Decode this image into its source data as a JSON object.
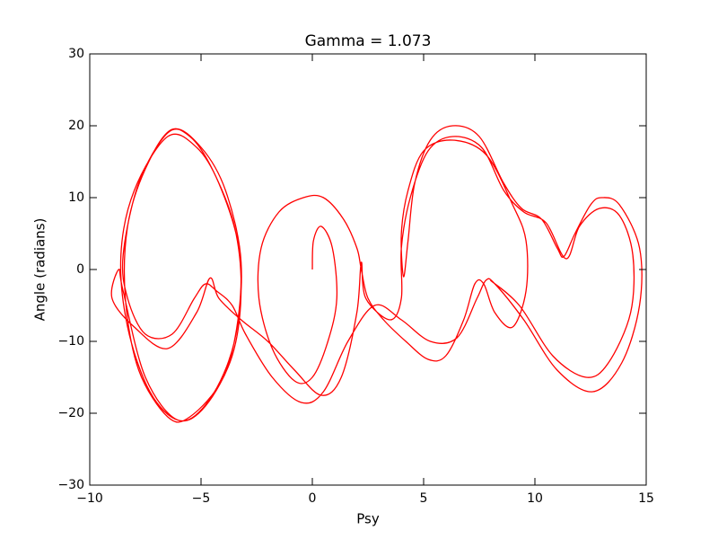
{
  "chart_data": {
    "type": "line",
    "title": "Gamma = 1.073",
    "xlabel": "Psy",
    "ylabel": "Angle (radians)",
    "color": "#ff0000",
    "xlim": [
      -10,
      15
    ],
    "xticks": [
      {
        "value": -10,
        "label": "−10"
      },
      {
        "value": -5,
        "label": "−5"
      },
      0,
      5,
      10,
      15
    ],
    "ylim": [
      -30,
      30
    ],
    "yticks": [
      {
        "value": -30,
        "label": "−30"
      },
      {
        "value": -20,
        "label": "−20"
      },
      {
        "value": -10,
        "label": "−10"
      },
      0,
      10,
      20,
      30
    ],
    "x": [
      0,
      0.05,
      0.4,
      0.9,
      1.1,
      0.7,
      0,
      -0.8,
      -1.8,
      -2.4,
      -2.3,
      -1.5,
      -0.4,
      0.5,
      1.4,
      2,
      2.2,
      2.5,
      3.2,
      4.2,
      5.2,
      6,
      6.8,
      7.3,
      7.7,
      8.2,
      9,
      9.6,
      9.6,
      9,
      7.8,
      6.3,
      5,
      4.3,
      4,
      4.1,
      4.3,
      4.6,
      5.3,
      6.3,
      7.5,
      8.6,
      9.4,
      10.3,
      11,
      11.3,
      11.8,
      12.5,
      13,
      13.8,
      14.7,
      14.7,
      13.9,
      12.6,
      11,
      9.5,
      8.2,
      7.8,
      7.4,
      6.5,
      5.3,
      4,
      2.8,
      1.6,
      0.5,
      -0.5,
      -1.8,
      -3,
      -3.6,
      -4.3,
      -4.8,
      -5.3,
      -6.3,
      -7.5,
      -8.3,
      -8.5,
      -7.8,
      -6.5,
      -5.5,
      -4.5,
      -3.5,
      -3.2,
      -3.6,
      -4.8,
      -6,
      -7.3,
      -8.3,
      -8.6,
      -8,
      -6.5,
      -5.2,
      -4.2,
      -3.3,
      -3.3,
      -4,
      -5.5,
      -6.5,
      -7.8,
      -8.4,
      -8.3,
      -7.5,
      -6.3,
      -5,
      -3.9,
      -3.2,
      -3.5,
      -4.6,
      -6,
      -7.5,
      -8.5,
      -8.7,
      -9,
      -8,
      -6.5,
      -5.2,
      -4.6,
      -4.2,
      -3.2,
      -2,
      -0.8,
      0.4,
      1.3,
      2,
      2.2,
      2.4,
      3.5,
      4,
      4,
      4.4,
      5.2,
      6.3,
      7.6,
      8.6,
      9.5,
      10.5,
      11.4,
      12,
      12.9,
      13.8,
      14.4,
      14.3,
      13.3,
      12.3,
      10.8,
      9.3,
      8
    ],
    "values": [
      0,
      4,
      6,
      3,
      -4,
      -10,
      -15,
      -15.5,
      -11,
      -4,
      3,
      8,
      10,
      10,
      7,
      3,
      0,
      -4,
      -7,
      -10,
      -12.5,
      -12,
      -7,
      -2,
      -2,
      -6,
      -8,
      -3,
      4,
      9,
      16,
      18,
      16.5,
      11,
      5,
      -1,
      4,
      12,
      18,
      20,
      18.5,
      12,
      8.5,
      7,
      3,
      1.8,
      5,
      9,
      10,
      9,
      3,
      -5,
      -13,
      -17,
      -14,
      -7,
      -2,
      -1.5,
      -4,
      -9.5,
      -10,
      -7,
      -5,
      -10,
      -17,
      -18.5,
      -15,
      -9,
      -5,
      -3,
      -2,
      -4,
      -9,
      -9,
      -4,
      2,
      12,
      19,
      18.5,
      14,
      6,
      -3,
      -12,
      -19,
      -21,
      -17,
      -8,
      2,
      11,
      18.5,
      17,
      12,
      3,
      -6,
      -15,
      -20.5,
      -20.5,
      -14,
      -4,
      6,
      14,
      19.5,
      17,
      11,
      1,
      -10,
      -18,
      -21,
      -15,
      -3,
      0,
      -4,
      -8,
      -11,
      -6,
      -1.2,
      -4,
      -7,
      -10,
      -14,
      -17.5,
      -15,
      -6,
      1,
      -4,
      -7,
      -4,
      3,
      10,
      16.5,
      18.5,
      17,
      11,
      8,
      6.5,
      1.5,
      6,
      8.5,
      7.5,
      2,
      -6,
      -13,
      -15,
      -12,
      -5,
      -1.5
    ]
  }
}
